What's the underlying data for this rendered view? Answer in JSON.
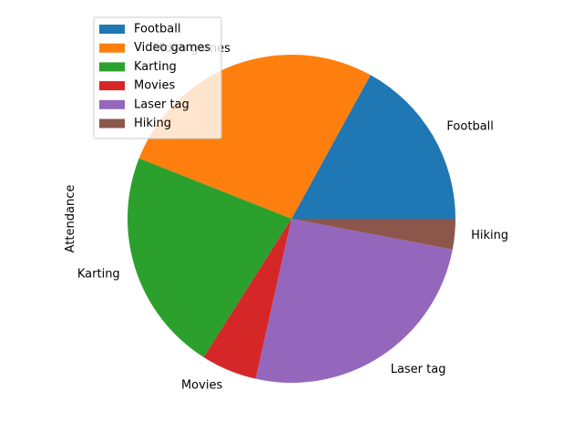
{
  "chart_data": {
    "type": "pie",
    "title": "",
    "ylabel": "Attendance",
    "categories": [
      "Football",
      "Video games",
      "Karting",
      "Movies",
      "Laser tag",
      "Hiking"
    ],
    "values": [
      17,
      27,
      22,
      5.5,
      25.5,
      3
    ],
    "colors": [
      "#1f77b4",
      "#ff7f0e",
      "#2ca02c",
      "#d62728",
      "#9467bd",
      "#8c564b"
    ],
    "start_angle_deg": 0,
    "direction": "counterclockwise",
    "legend": {
      "placement": "upper-left",
      "entries": [
        "Football",
        "Video games",
        "Karting",
        "Movies",
        "Laser tag",
        "Hiking"
      ]
    }
  }
}
